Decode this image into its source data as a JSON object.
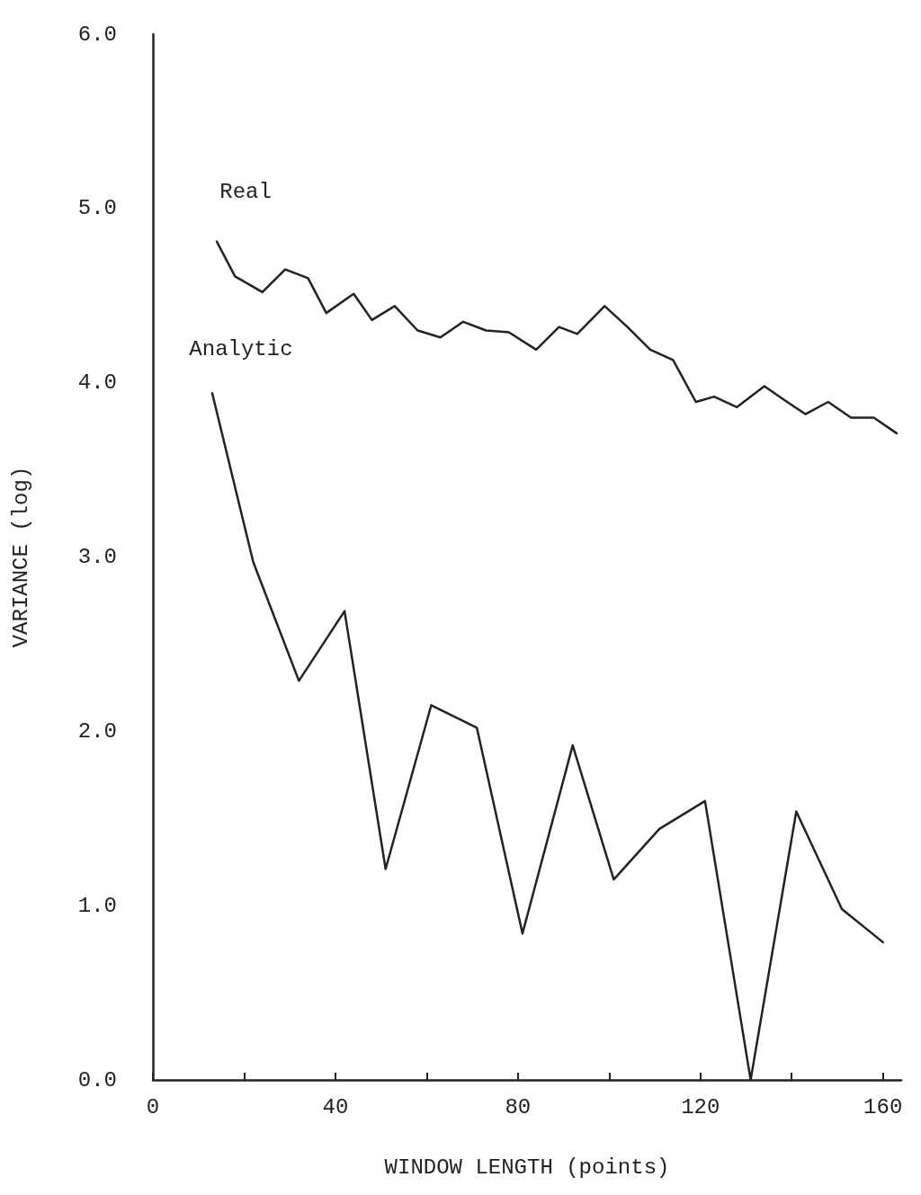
{
  "chart_data": {
    "type": "line",
    "xlabel": "WINDOW LENGTH (points)",
    "ylabel": "VARIANCE (log)",
    "xlim": [
      0,
      164
    ],
    "ylim": [
      0,
      6
    ],
    "xticks": [
      0,
      {
        "value": 20,
        "label": null
      },
      40,
      {
        "value": 60,
        "label": null
      },
      80,
      {
        "value": 100,
        "label": null
      },
      120,
      {
        "value": 140,
        "label": null
      },
      160
    ],
    "yticks": [
      {
        "value": 0,
        "label": "0.0"
      },
      {
        "value": 1,
        "label": "1.0"
      },
      {
        "value": 2,
        "label": "2.0"
      },
      {
        "value": 3,
        "label": "3.0"
      },
      {
        "value": 4,
        "label": "4.0"
      },
      {
        "value": 5,
        "label": "5.0"
      },
      {
        "value": 6,
        "label": "6.0"
      }
    ],
    "grid": false,
    "legend": false,
    "marker": "none",
    "line_style": "solid",
    "series": [
      {
        "name": "Real",
        "color": "#222222",
        "x": [
          14,
          18,
          24,
          29,
          34,
          38,
          44,
          48,
          53,
          58,
          63,
          68,
          73,
          78,
          84,
          89,
          93,
          99,
          104,
          109,
          114,
          119,
          123,
          128,
          134,
          139,
          143,
          148,
          153,
          158,
          163
        ],
        "values": [
          4.81,
          4.61,
          4.52,
          4.65,
          4.6,
          4.4,
          4.51,
          4.36,
          4.44,
          4.3,
          4.26,
          4.35,
          4.3,
          4.29,
          4.19,
          4.32,
          4.28,
          4.44,
          4.32,
          4.19,
          4.13,
          3.89,
          3.92,
          3.86,
          3.98,
          3.89,
          3.82,
          3.89,
          3.8,
          3.8,
          3.71
        ]
      },
      {
        "name": "Analytic",
        "color": "#222222",
        "x": [
          13,
          22,
          32,
          42,
          51,
          61,
          71,
          81,
          92,
          101,
          111,
          121,
          131,
          141,
          151,
          160
        ],
        "values": [
          3.94,
          2.97,
          2.29,
          2.69,
          1.21,
          2.15,
          2.02,
          0.84,
          1.92,
          1.15,
          1.44,
          1.6,
          0.0,
          1.54,
          0.98,
          0.79
        ]
      }
    ]
  }
}
